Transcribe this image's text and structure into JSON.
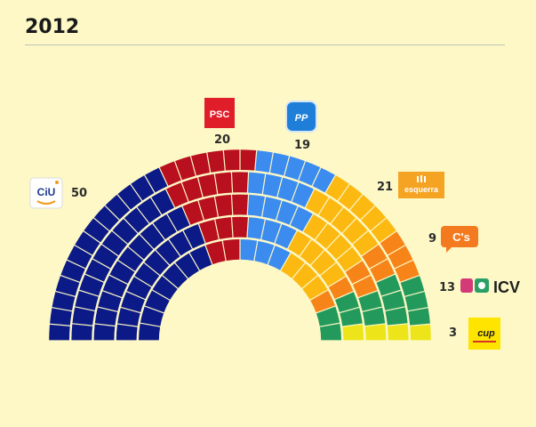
{
  "header": {
    "title": "2012"
  },
  "chart_data": {
    "type": "parliament",
    "title": "2012",
    "total_seats": 135,
    "series": [
      {
        "name": "CiU",
        "value": 50,
        "color": "#0b1a86"
      },
      {
        "name": "PSC",
        "value": 20,
        "color": "#b8101e"
      },
      {
        "name": "PP",
        "value": 19,
        "color": "#3c8cf0"
      },
      {
        "name": "esquerra",
        "value": 21,
        "color": "#fcb912"
      },
      {
        "name": "C's",
        "value": 9,
        "color": "#f78418"
      },
      {
        "name": "ICV",
        "value": 13,
        "color": "#239a5c"
      },
      {
        "name": "CUP",
        "value": 3,
        "color": "#ede51a"
      }
    ]
  },
  "logos": {
    "ciu": {
      "text": "CiU",
      "icon": "ciu-logo"
    },
    "psc": {
      "text": "PSC",
      "icon": "psc-logo"
    },
    "pp": {
      "text": "PP",
      "icon": "pp-logo"
    },
    "esquerra": {
      "text": "esquerra",
      "icon": "esquerra-logo"
    },
    "cs": {
      "text": "C's",
      "icon": "cs-logo"
    },
    "icv": {
      "text": "ICV",
      "icon": "icv-logo"
    },
    "cup": {
      "text": "cup",
      "icon": "cup-logo"
    }
  },
  "counts": {
    "ciu": "50",
    "psc": "20",
    "pp": "19",
    "esquerra": "21",
    "cs": "9",
    "icv": "13",
    "cup": "3"
  }
}
